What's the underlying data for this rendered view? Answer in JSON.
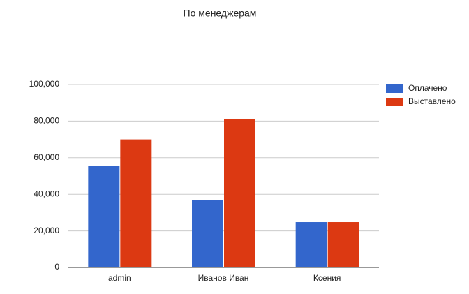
{
  "chart_data": {
    "type": "bar",
    "title": "По менеджерам",
    "categories": [
      "admin",
      "Иванов Иван",
      "Ксения"
    ],
    "series": [
      {
        "name": "Оплачено",
        "color": "#3366cc",
        "values": [
          55700,
          36700,
          24800
        ]
      },
      {
        "name": "Выставлено",
        "color": "#dc3912",
        "values": [
          70000,
          81300,
          24800
        ]
      }
    ],
    "ylim": [
      0,
      100000
    ],
    "yticks": [
      0,
      {
        "value": 20000,
        "label": "20,000"
      },
      {
        "value": 40000,
        "label": "40,000"
      },
      {
        "value": 60000,
        "label": "60,000"
      },
      {
        "value": 80000,
        "label": "80,000"
      },
      {
        "value": 100000,
        "label": "100,000"
      }
    ],
    "grid": true,
    "legend": "right"
  }
}
